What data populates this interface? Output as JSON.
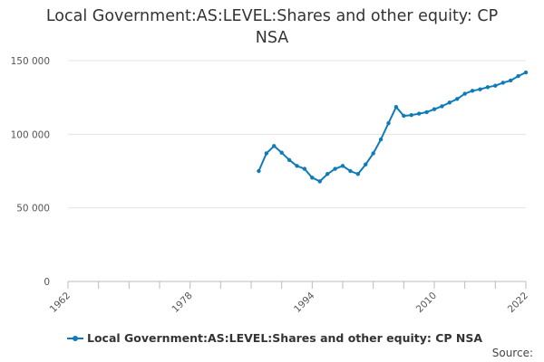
{
  "chart_data": {
    "type": "line",
    "title_lines": [
      "Local Government:AS:LEVEL:Shares and other equity: CP",
      "NSA"
    ],
    "xlabel": "",
    "ylabel": "",
    "xlim": [
      1962,
      2022
    ],
    "ylim": [
      0,
      150000
    ],
    "x_ticks": [
      1962,
      1978,
      1994,
      2010,
      2022
    ],
    "x_minor_every": 4,
    "y_ticks": [
      0,
      50000,
      100000,
      150000
    ],
    "y_tick_labels": [
      "0",
      "50 000",
      "100 000",
      "150 000"
    ],
    "grid": "horizontal",
    "legend_position": "bottom",
    "series": [
      {
        "name": "Local Government:AS:LEVEL:Shares and other equity: CP NSA",
        "color": "#0f7bb8",
        "x": [
          1987,
          1988,
          1989,
          1990,
          1991,
          1992,
          1993,
          1994,
          1995,
          1996,
          1997,
          1998,
          1999,
          2000,
          2001,
          2002,
          2003,
          2004,
          2005,
          2006,
          2007,
          2008,
          2009,
          2010,
          2011,
          2012,
          2013,
          2014,
          2015,
          2016,
          2017,
          2018,
          2019,
          2020,
          2021,
          2022
        ],
        "values": [
          75000,
          87000,
          92000,
          87500,
          82500,
          78500,
          76500,
          70500,
          68000,
          73000,
          76500,
          78500,
          75000,
          73000,
          79500,
          87000,
          96500,
          107500,
          118500,
          112500,
          113000,
          114000,
          115000,
          117000,
          119000,
          121500,
          124000,
          127500,
          129500,
          130500,
          132000,
          133000,
          135000,
          136500,
          139500,
          142000
        ]
      }
    ]
  },
  "legend": {
    "label": "Local Government:AS:LEVEL:Shares and other equity: CP NSA"
  },
  "footer": {
    "source_label": "Source:"
  }
}
